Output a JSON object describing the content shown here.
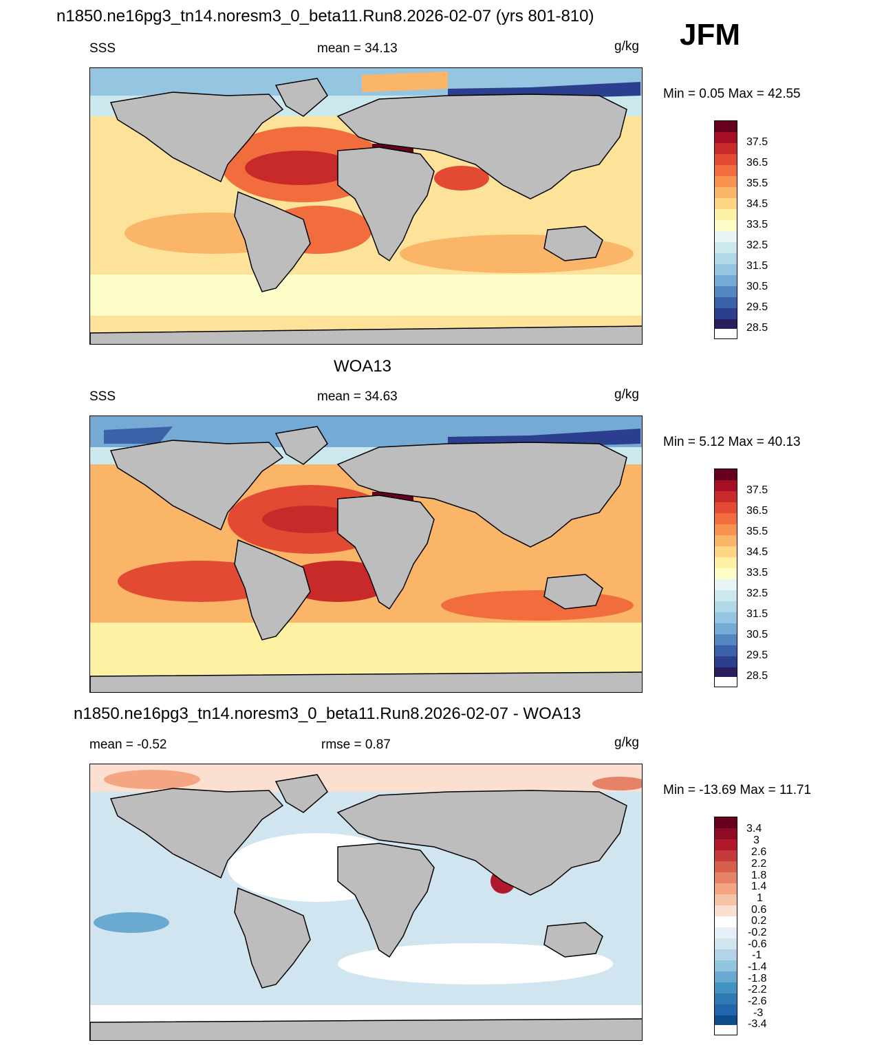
{
  "page": {
    "season": "JFM",
    "top_title": "n1850.ne16pg3_tn14.noresm3_0_beta11.Run8.2026-02-07 (yrs 801-810)"
  },
  "panels": [
    {
      "heading": "",
      "left_label": "SSS",
      "center_label": "mean =  34.13",
      "units": "g/kg",
      "minmax": "Min =   0.05 Max =  42.55"
    },
    {
      "heading": "WOA13",
      "left_label": "SSS",
      "center_label": "mean =  34.63",
      "units": "g/kg",
      "minmax": "Min =   5.12 Max =  40.13"
    },
    {
      "heading": "n1850.ne16pg3_tn14.noresm3_0_beta11.Run8.2026-02-07 - WOA13",
      "left_label": "mean =  -0.52",
      "center_label": "rmse =   0.87",
      "units": "g/kg",
      "minmax": "Min = -13.69 Max =  11.71"
    }
  ],
  "colorbar_sss": {
    "labels": [
      "37.5",
      "36.5",
      "35.5",
      "34.5",
      "33.5",
      "32.5",
      "31.5",
      "30.5",
      "29.5",
      "28.5"
    ],
    "colors": [
      "#67001f",
      "#a50f26",
      "#c82a2a",
      "#e34a33",
      "#f26d3d",
      "#f8934f",
      "#fbb568",
      "#fdd585",
      "#fef1a3",
      "#fdfdc8",
      "#e8f5f4",
      "#cce8ef",
      "#b1d8e9",
      "#95c5e1",
      "#74aad4",
      "#5287c2",
      "#3b61a9",
      "#2c3f8f",
      "#2a1d5e"
    ]
  },
  "colorbar_diff": {
    "labels": [
      "3.4",
      "3",
      "2.6",
      "2.2",
      "1.8",
      "1.4",
      "1",
      "0.6",
      "0.2",
      "-0.2",
      "-0.6",
      "-1",
      "-1.4",
      "-1.8",
      "-2.2",
      "-2.6",
      "-3",
      "-3.4"
    ],
    "colors": [
      "#67001f",
      "#8e0b25",
      "#b2182b",
      "#c6393b",
      "#d6604d",
      "#e58267",
      "#f4a582",
      "#f7c3a7",
      "#fbe0d2",
      "#ffffff",
      "#e6eff6",
      "#d1e5f0",
      "#b3d4e8",
      "#92c5de",
      "#6aaad0",
      "#4393c3",
      "#2f79b5",
      "#2166ac",
      "#0f4c8a",
      "#053061"
    ]
  }
}
